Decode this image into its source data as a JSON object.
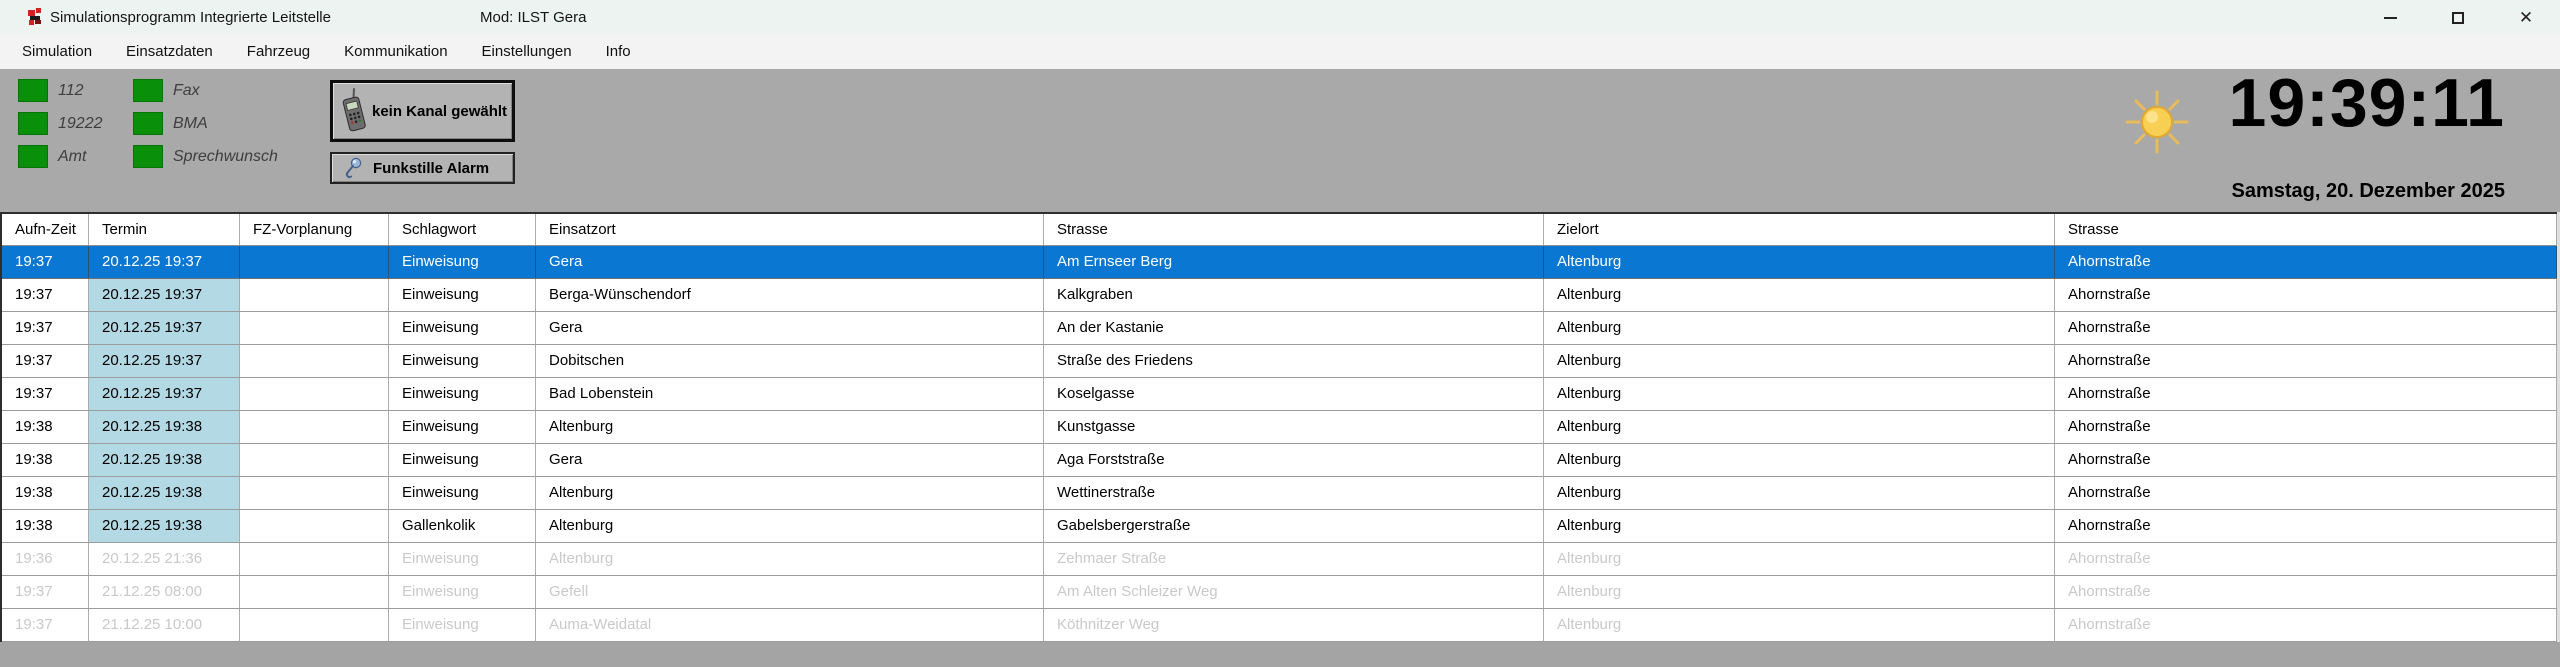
{
  "window": {
    "title": "Simulationsprogramm Integrierte Leitstelle",
    "mod_label": "Mod: ILST Gera"
  },
  "menu": {
    "items": [
      "Simulation",
      "Einsatzdaten",
      "Fahrzeug",
      "Kommunikation",
      "Einstellungen",
      "Info"
    ]
  },
  "status_panel": {
    "indicators": [
      {
        "label": "112"
      },
      {
        "label": "19222"
      },
      {
        "label": "Amt"
      },
      {
        "label": "Fax"
      },
      {
        "label": "BMA"
      },
      {
        "label": "Sprechwunsch"
      }
    ],
    "led_color": "#0a8f0a"
  },
  "toolbar": {
    "channel_button_label": "kein Kanal gewählt",
    "radio_silence_button_label": "Funkstille Alarm"
  },
  "clock": {
    "time": "19:39:11",
    "date": "Samstag, 20. Dezember 2025"
  },
  "icons": {
    "app": "app-icon",
    "channel_button": "phone-icon",
    "radio_silence_button": "microphone-icon",
    "daylight": "sun-icon"
  },
  "colors": {
    "selected_row": "#0a78d2",
    "termin_highlight": "#b3d9e5",
    "led_green": "#0a8f0a",
    "background_gray": "#a9a9a9"
  },
  "table": {
    "columns": [
      "Aufn-Zeit",
      "Termin",
      "FZ-Vorplanung",
      "Schlagwort",
      "Einsatzort",
      "Strasse",
      "Zielort",
      "Strasse"
    ],
    "rows": [
      {
        "aufn_zeit": "19:37",
        "termin": "20.12.25 19:37",
        "fz_vorplanung": "",
        "schlagwort": "Einweisung",
        "einsatzort": "Gera",
        "strasse": "Am Ernseer Berg",
        "zielort": "Altenburg",
        "strasse2": "Ahornstraße",
        "state": "selected"
      },
      {
        "aufn_zeit": "19:37",
        "termin": "20.12.25 19:37",
        "fz_vorplanung": "",
        "schlagwort": "Einweisung",
        "einsatzort": "Berga-Wünschendorf",
        "strasse": "Kalkgraben",
        "zielort": "Altenburg",
        "strasse2": "Ahornstraße",
        "state": "normal"
      },
      {
        "aufn_zeit": "19:37",
        "termin": "20.12.25 19:37",
        "fz_vorplanung": "",
        "schlagwort": "Einweisung",
        "einsatzort": "Gera",
        "strasse": "An der Kastanie",
        "zielort": "Altenburg",
        "strasse2": "Ahornstraße",
        "state": "normal"
      },
      {
        "aufn_zeit": "19:37",
        "termin": "20.12.25 19:37",
        "fz_vorplanung": "",
        "schlagwort": "Einweisung",
        "einsatzort": "Dobitschen",
        "strasse": "Straße des Friedens",
        "zielort": "Altenburg",
        "strasse2": "Ahornstraße",
        "state": "normal"
      },
      {
        "aufn_zeit": "19:37",
        "termin": "20.12.25 19:37",
        "fz_vorplanung": "",
        "schlagwort": "Einweisung",
        "einsatzort": "Bad Lobenstein",
        "strasse": "Koselgasse",
        "zielort": "Altenburg",
        "strasse2": "Ahornstraße",
        "state": "normal"
      },
      {
        "aufn_zeit": "19:38",
        "termin": "20.12.25 19:38",
        "fz_vorplanung": "",
        "schlagwort": "Einweisung",
        "einsatzort": "Altenburg",
        "strasse": "Kunstgasse",
        "zielort": "Altenburg",
        "strasse2": "Ahornstraße",
        "state": "normal"
      },
      {
        "aufn_zeit": "19:38",
        "termin": "20.12.25 19:38",
        "fz_vorplanung": "",
        "schlagwort": "Einweisung",
        "einsatzort": "Gera",
        "strasse": "Aga Forststraße",
        "zielort": "Altenburg",
        "strasse2": "Ahornstraße",
        "state": "normal"
      },
      {
        "aufn_zeit": "19:38",
        "termin": "20.12.25 19:38",
        "fz_vorplanung": "",
        "schlagwort": "Einweisung",
        "einsatzort": "Altenburg",
        "strasse": "Wettinerstraße",
        "zielort": "Altenburg",
        "strasse2": "Ahornstraße",
        "state": "normal"
      },
      {
        "aufn_zeit": "19:38",
        "termin": "20.12.25 19:38",
        "fz_vorplanung": "",
        "schlagwort": "Gallenkolik",
        "einsatzort": "Altenburg",
        "strasse": "Gabelsbergerstraße",
        "zielort": "Altenburg",
        "strasse2": "Ahornstraße",
        "state": "normal"
      },
      {
        "aufn_zeit": "19:36",
        "termin": "20.12.25 21:36",
        "fz_vorplanung": "",
        "schlagwort": "Einweisung",
        "einsatzort": "Altenburg",
        "strasse": "Zehmaer Straße",
        "zielort": "Altenburg",
        "strasse2": "Ahornstraße",
        "state": "disabled"
      },
      {
        "aufn_zeit": "19:37",
        "termin": "21.12.25 08:00",
        "fz_vorplanung": "",
        "schlagwort": "Einweisung",
        "einsatzort": "Gefell",
        "strasse": "Am Alten Schleizer Weg",
        "zielort": "Altenburg",
        "strasse2": "Ahornstraße",
        "state": "disabled"
      },
      {
        "aufn_zeit": "19:37",
        "termin": "21.12.25 10:00",
        "fz_vorplanung": "",
        "schlagwort": "Einweisung",
        "einsatzort": "Auma-Weidatal",
        "strasse": "Köthnitzer Weg",
        "zielort": "Altenburg",
        "strasse2": "Ahornstraße",
        "state": "disabled"
      }
    ]
  }
}
